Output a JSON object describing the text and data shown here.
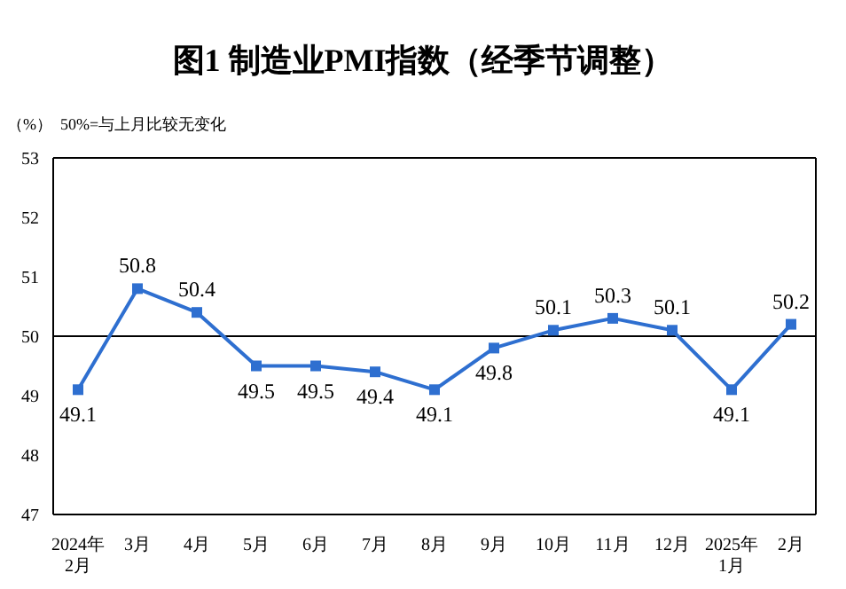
{
  "chart_data": {
    "type": "line",
    "title": "图1 制造业PMI指数（经季节调整）",
    "ylabel": "（%）",
    "annotations": [
      "50%=与上月比较无变化"
    ],
    "categories": [
      "2024年\n2月",
      "3月",
      "4月",
      "5月",
      "6月",
      "7月",
      "8月",
      "9月",
      "10月",
      "11月",
      "12月",
      "2025年\n1月",
      "2月"
    ],
    "series": [
      {
        "color": "#2e6fd0",
        "values": [
          49.1,
          50.8,
          50.4,
          49.5,
          49.5,
          49.4,
          49.1,
          49.8,
          50.1,
          50.3,
          50.1,
          49.1,
          50.2
        ]
      }
    ],
    "ylim": [
      47,
      53
    ],
    "yticks": [
      47,
      48,
      49,
      50,
      51,
      52,
      53
    ],
    "ref_lines": [
      {
        "axis": "y",
        "value": 50,
        "color": "#000000"
      }
    ],
    "data_labels": true,
    "marker": "square",
    "line_style": "solid",
    "grid": false,
    "legend": false
  }
}
